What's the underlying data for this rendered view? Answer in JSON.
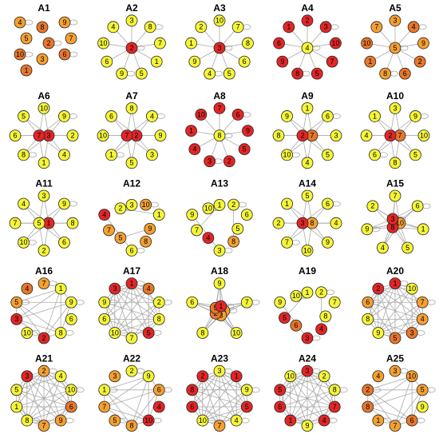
{
  "panels": [
    {
      "title": "A1",
      "labels": [
        4,
        8,
        9,
        5,
        2,
        7,
        10,
        3,
        6,
        1
      ],
      "colors": [
        "#f5a031",
        "#e8772a",
        "#f5a031",
        "#f5a031",
        "#e8772a",
        "#f5a031",
        "#e8772a",
        "#f5a031",
        "#e8772a",
        "#e8772a"
      ]
    },
    {
      "title": "A2",
      "labels": [
        3,
        8,
        7,
        1,
        5,
        9,
        6,
        10,
        4,
        2
      ],
      "colors": [
        "#f6f637",
        "#f6f637",
        "#f6f637",
        "#f6f637",
        "#f6f637",
        "#f6f637",
        "#f6f637",
        "#f6f637",
        "#f6f637",
        "#e32626"
      ]
    },
    {
      "title": "A3",
      "labels": [
        10,
        7,
        8,
        6,
        5,
        4,
        9,
        1,
        2,
        3
      ],
      "colors": [
        "#f6f637",
        "#f6f637",
        "#f6f637",
        "#f6f637",
        "#f6f637",
        "#f6f637",
        "#f6f637",
        "#f6f637",
        "#f6f637",
        "#e32626"
      ]
    },
    {
      "title": "A4",
      "labels": [
        2,
        3,
        10,
        7,
        5,
        8,
        9,
        6,
        1,
        4
      ],
      "colors": [
        "#e32626",
        "#e32626",
        "#e32626",
        "#e32626",
        "#e32626",
        "#e32626",
        "#e32626",
        "#e32626",
        "#e32626",
        "#f6f637"
      ]
    },
    {
      "title": "A5",
      "labels": [
        3,
        4,
        9,
        2,
        6,
        8,
        1,
        10,
        7,
        5
      ],
      "colors": [
        "#f5a031",
        "#e8772a",
        "#f5a031",
        "#e8772a",
        "#e8772a",
        "#f5a031",
        "#e8772a",
        "#e8772a",
        "#f5a031",
        "#f5a031"
      ]
    },
    {
      "title": "A6",
      "labels": [
        10,
        9,
        2,
        4,
        1,
        8,
        6,
        5,
        3,
        7
      ],
      "colors": [
        "#f6f637",
        "#f6f637",
        "#f6f637",
        "#f6f637",
        "#f6f637",
        "#f6f637",
        "#f6f637",
        "#f6f637",
        "#e32626",
        "#e32626"
      ]
    },
    {
      "title": "A7",
      "labels": [
        8,
        4,
        9,
        3,
        5,
        1,
        10,
        6,
        2,
        7
      ],
      "colors": [
        "#f6f637",
        "#f6f637",
        "#f6f637",
        "#f6f637",
        "#f6f637",
        "#f6f637",
        "#f6f637",
        "#f6f637",
        "#e32626",
        "#e32626"
      ]
    },
    {
      "title": "A8",
      "labels": [
        7,
        6,
        9,
        5,
        2,
        3,
        4,
        1,
        10,
        8
      ],
      "colors": [
        "#e32626",
        "#e32626",
        "#e32626",
        "#e32626",
        "#e32626",
        "#e32626",
        "#e32626",
        "#e32626",
        "#e32626",
        "#f6f637"
      ]
    },
    {
      "title": "A9",
      "labels": [
        1,
        6,
        3,
        5,
        4,
        10,
        8,
        9,
        7,
        2
      ],
      "colors": [
        "#f6f637",
        "#f6f637",
        "#f6f637",
        "#f6f637",
        "#f6f637",
        "#f6f637",
        "#f6f637",
        "#f6f637",
        "#e8772a",
        "#e32626"
      ]
    },
    {
      "title": "A10",
      "labels": [
        3,
        9,
        10,
        5,
        8,
        6,
        4,
        1,
        7,
        2
      ],
      "colors": [
        "#f6f637",
        "#f6f637",
        "#f6f637",
        "#f6f637",
        "#f6f637",
        "#f6f637",
        "#f6f637",
        "#f6f637",
        "#e8772a",
        "#e32626"
      ]
    },
    {
      "title": "A11",
      "labels": [
        3,
        9,
        8,
        6,
        2,
        10,
        7,
        4,
        1,
        5
      ],
      "colors": [
        "#f6f637",
        "#f6f637",
        "#f6f637",
        "#f6f637",
        "#f6f637",
        "#f6f637",
        "#f6f637",
        "#f6f637",
        "#e32626",
        "#f6f637"
      ]
    },
    {
      "title": "A12",
      "labels": [
        3,
        10,
        1,
        9,
        8,
        6,
        5,
        7,
        4,
        2
      ],
      "colors": [
        "#f6f637",
        "#f5a031",
        "#f6f637",
        "#f5a031",
        "#f5a031",
        "#f6f637",
        "#f5a031",
        "#f5a031",
        "#e32626",
        "#f6f637"
      ]
    },
    {
      "title": "A13",
      "labels": [
        1,
        2,
        6,
        5,
        8,
        3,
        4,
        7,
        9,
        10
      ],
      "colors": [
        "#f6f637",
        "#f6f637",
        "#f6f637",
        "#f6f637",
        "#f5a031",
        "#f6f637",
        "#e32626",
        "#f6f637",
        "#f6f637",
        "#f6f637"
      ]
    },
    {
      "title": "A14",
      "labels": [
        5,
        6,
        4,
        9,
        10,
        7,
        2,
        1,
        8,
        3
      ],
      "colors": [
        "#f6f637",
        "#f6f637",
        "#f6f637",
        "#f6f637",
        "#f6f637",
        "#f6f637",
        "#f6f637",
        "#f6f637",
        "#f5a031",
        "#e32626"
      ]
    },
    {
      "title": "A15",
      "labels": [
        7,
        6,
        1,
        5,
        4,
        9,
        2,
        10,
        8,
        3
      ],
      "colors": [
        "#f6f637",
        "#f6f637",
        "#f6f637",
        "#f6f637",
        "#f6f637",
        "#f6f637",
        "#f6f637",
        "#f5a031",
        "#e32626",
        "#e32626"
      ]
    },
    {
      "title": "A16",
      "labels": [
        7,
        1,
        9,
        6,
        8,
        2,
        10,
        3,
        5,
        4
      ],
      "colors": [
        "#f5a031",
        "#f6f637",
        "#f6f637",
        "#f6f637",
        "#f6f637",
        "#e32626",
        "#f6f637",
        "#e32626",
        "#f5a031",
        "#e8772a"
      ]
    },
    {
      "title": "A17",
      "labels": [
        1,
        4,
        2,
        8,
        5,
        7,
        10,
        6,
        9,
        3
      ],
      "colors": [
        "#e32626",
        "#e8772a",
        "#f6f637",
        "#f6f637",
        "#e32626",
        "#f6f637",
        "#f6f637",
        "#f6f637",
        "#f6f637",
        "#e32626"
      ]
    },
    {
      "title": "A18",
      "labels": [
        9,
        7,
        10,
        8,
        6,
        4,
        3,
        2,
        5,
        1
      ],
      "colors": [
        "#f6f637",
        "#f6f637",
        "#f6f637",
        "#f6f637",
        "#f6f637",
        "#f5a031",
        "#f5a031",
        "#e8772a",
        "#e8772a",
        "#e32626"
      ]
    },
    {
      "title": "A19",
      "labels": [
        1,
        2,
        7,
        8,
        4,
        3,
        6,
        5,
        9,
        10
      ],
      "colors": [
        "#f6f637",
        "#f6f637",
        "#f6f637",
        "#f6f637",
        "#e32626",
        "#e32626",
        "#e8772a",
        "#e32626",
        "#f6f637",
        "#f6f637"
      ]
    },
    {
      "title": "A20",
      "labels": [
        1,
        10,
        7,
        4,
        3,
        5,
        9,
        8,
        6,
        2
      ],
      "colors": [
        "#e32626",
        "#f6f637",
        "#f5a031",
        "#f5a031",
        "#e8772a",
        "#e8772a",
        "#f6f637",
        "#f6f637",
        "#f5a031",
        "#e32626"
      ]
    },
    {
      "title": "A21",
      "labels": [
        2,
        4,
        10,
        6,
        9,
        7,
        8,
        1,
        5,
        3
      ],
      "colors": [
        "#f5a031",
        "#f6f637",
        "#f6f637",
        "#e8772a",
        "#f5a031",
        "#f5a031",
        "#f6f637",
        "#f6f637",
        "#f6f637",
        "#e32626"
      ]
    },
    {
      "title": "A22",
      "labels": [
        2,
        9,
        6,
        4,
        10,
        8,
        5,
        7,
        1,
        3
      ],
      "colors": [
        "#f6f637",
        "#f6f637",
        "#f5a031",
        "#e32626",
        "#e32626",
        "#f5a031",
        "#f5a031",
        "#f5a031",
        "#f6f637",
        "#f5a031"
      ]
    },
    {
      "title": "A23",
      "labels": [
        3,
        1,
        9,
        5,
        4,
        7,
        10,
        6,
        8,
        2
      ],
      "colors": [
        "#f6f637",
        "#e32626",
        "#f6f637",
        "#e32626",
        "#f6f637",
        "#f5a031",
        "#f6f637",
        "#e32626",
        "#e32626",
        "#e32626"
      ]
    },
    {
      "title": "A24",
      "labels": [
        3,
        2,
        8,
        7,
        4,
        9,
        1,
        6,
        5,
        10
      ],
      "colors": [
        "#e32626",
        "#f6f637",
        "#f6f637",
        "#e32626",
        "#e32626",
        "#f6f637",
        "#e32626",
        "#e32626",
        "#e32626",
        "#f6f637"
      ]
    },
    {
      "title": "A25",
      "labels": [
        3,
        10,
        5,
        9,
        6,
        7,
        1,
        8,
        2,
        4
      ],
      "colors": [
        "#f5a031",
        "#f5a031",
        "#f5a031",
        "#f6f637",
        "#e8772a",
        "#f5a031",
        "#f5a031",
        "#e8772a",
        "#e8772a",
        "#f5a031"
      ]
    }
  ]
}
